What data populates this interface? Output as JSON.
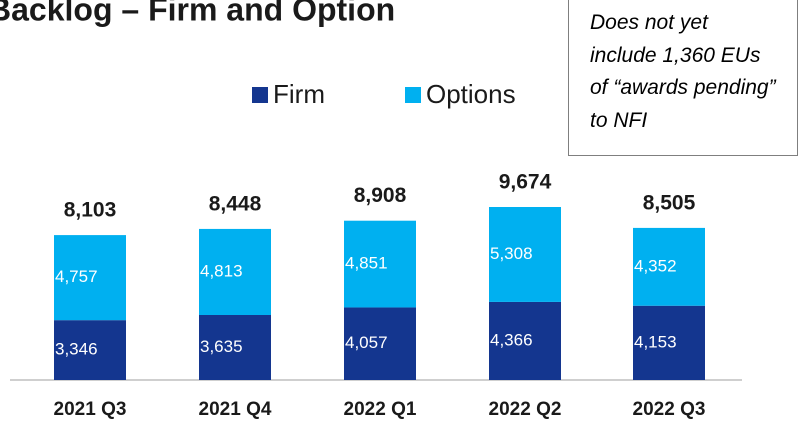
{
  "chart_data": {
    "type": "stacked_bar",
    "title": "Backlog – Firm and Option",
    "annotation": "Does not yet include 1,360 EUs of “awards pending” to NFI",
    "categories": [
      "2021 Q3",
      "2021 Q4",
      "2022 Q1",
      "2022 Q2",
      "2022 Q3"
    ],
    "series": [
      {
        "name": "Firm",
        "color": "#14368f",
        "values": [
          3346,
          3635,
          4057,
          4366,
          4153
        ],
        "value_labels": [
          "3,346",
          "3,635",
          "4,057",
          "4,366",
          "4,153"
        ]
      },
      {
        "name": "Options",
        "color": "#00b0f0",
        "values": [
          4757,
          4813,
          4851,
          5308,
          4352
        ],
        "value_labels": [
          "4,757",
          "4,813",
          "4,851",
          "5,308",
          "4,352"
        ]
      }
    ],
    "totals": [
      8103,
      8448,
      8908,
      9674,
      8505
    ],
    "total_labels": [
      "8,103",
      "8,448",
      "8,908",
      "9,674",
      "8,505"
    ],
    "legend": "top"
  }
}
